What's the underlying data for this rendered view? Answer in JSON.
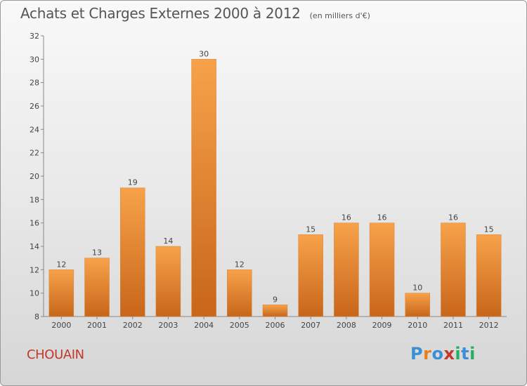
{
  "chart_data": {
    "type": "bar",
    "title": "Achats et Charges Externes 2000 à 2012",
    "subtitle": "(en milliers d'€)",
    "categories": [
      "2000",
      "2001",
      "2002",
      "2003",
      "2004",
      "2005",
      "2006",
      "2007",
      "2008",
      "2009",
      "2010",
      "2011",
      "2012"
    ],
    "values": [
      12,
      13,
      19,
      14,
      30,
      12,
      9,
      15,
      16,
      16,
      10,
      16,
      15
    ],
    "xlabel": "",
    "ylabel": "",
    "ylim": [
      8,
      32
    ],
    "yticks": [
      8,
      10,
      12,
      14,
      16,
      18,
      20,
      22,
      24,
      26,
      28,
      30,
      32
    ],
    "grid": false,
    "legend": "none",
    "bar_color_light": "#f7a24a",
    "bar_color_dark": "#c8661a"
  },
  "footer": {
    "commune": "CHOUAIN",
    "logo_text": "Proxiti",
    "commune_color": "#c0392b",
    "logo_colors": [
      "#3b8fd9",
      "#e67e22",
      "#3b8fd9",
      "#c0392b",
      "#27ae60",
      "#3b8fd9",
      "#27ae60"
    ]
  }
}
